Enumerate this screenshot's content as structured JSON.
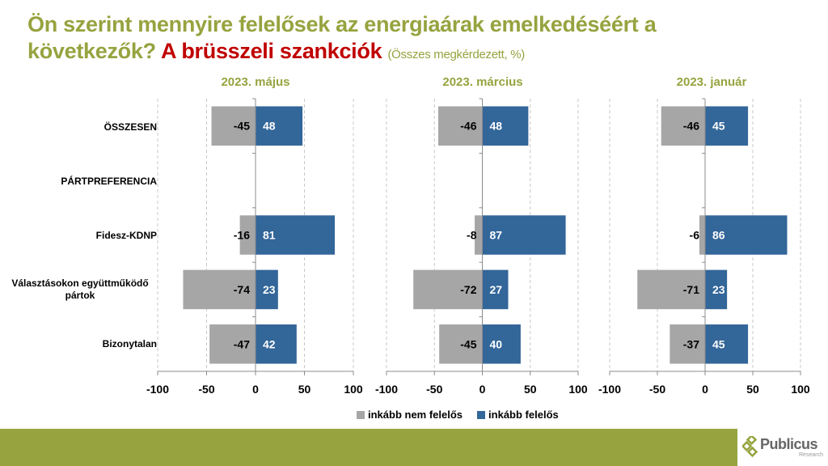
{
  "title": {
    "line1": "Ön szerint mennyire felelősek az energiaárak emelkedéséért a",
    "line2_prefix": "következők? ",
    "accent": "A brüsszeli szankciók",
    "subtitle": "(Összes megkérdezett, %)"
  },
  "colors": {
    "title_green": "#97a33f",
    "accent_red": "#c00000",
    "negative_bar": "#a6a6a6",
    "positive_bar": "#336699",
    "footer": "#97a33f"
  },
  "category_labels": [
    "ÖSSZESEN",
    "PÁRTPREFERENCIA",
    "Fidesz-KDNP",
    "Választásokon együttműködő pártok",
    "Bizonytalan"
  ],
  "legend": [
    {
      "label": "inkább nem felelős",
      "color": "#a6a6a6"
    },
    {
      "label": "inkább felelős",
      "color": "#336699"
    }
  ],
  "logo": {
    "name": "Publicus",
    "sub": "Research"
  },
  "chart_data": [
    {
      "type": "bar",
      "orientation": "horizontal-diverging",
      "title": "2023. május",
      "categories": [
        "ÖSSZESEN",
        "PÁRTPREFERENCIA",
        "Fidesz-KDNP",
        "Választásokon együttműködő pártok",
        "Bizonytalan"
      ],
      "series": [
        {
          "name": "inkább nem felelős",
          "values": [
            -45,
            null,
            -16,
            -74,
            -47
          ]
        },
        {
          "name": "inkább felelős",
          "values": [
            48,
            null,
            81,
            23,
            42
          ]
        }
      ],
      "xlim": [
        -100,
        100
      ],
      "xticks": [
        -100,
        -50,
        0,
        50,
        100
      ],
      "grid": true
    },
    {
      "type": "bar",
      "orientation": "horizontal-diverging",
      "title": "2023. március",
      "categories": [
        "ÖSSZESEN",
        "PÁRTPREFERENCIA",
        "Fidesz-KDNP",
        "Választásokon együttműködő pártok",
        "Bizonytalan"
      ],
      "series": [
        {
          "name": "inkább nem felelős",
          "values": [
            -46,
            null,
            -8,
            -72,
            -45
          ]
        },
        {
          "name": "inkább felelős",
          "values": [
            48,
            null,
            87,
            27,
            40
          ]
        }
      ],
      "xlim": [
        -100,
        100
      ],
      "xticks": [
        -100,
        -50,
        0,
        50,
        100
      ],
      "grid": true
    },
    {
      "type": "bar",
      "orientation": "horizontal-diverging",
      "title": "2023. január",
      "categories": [
        "ÖSSZESEN",
        "PÁRTPREFERENCIA",
        "Fidesz-KDNP",
        "Választásokon együttműködő pártok",
        "Bizonytalan"
      ],
      "series": [
        {
          "name": "inkább nem felelős",
          "values": [
            -46,
            null,
            -6,
            -71,
            -37
          ]
        },
        {
          "name": "inkább felelős",
          "values": [
            45,
            null,
            86,
            23,
            45
          ]
        }
      ],
      "xlim": [
        -100,
        100
      ],
      "xticks": [
        -100,
        -50,
        0,
        50,
        100
      ],
      "grid": true
    }
  ]
}
